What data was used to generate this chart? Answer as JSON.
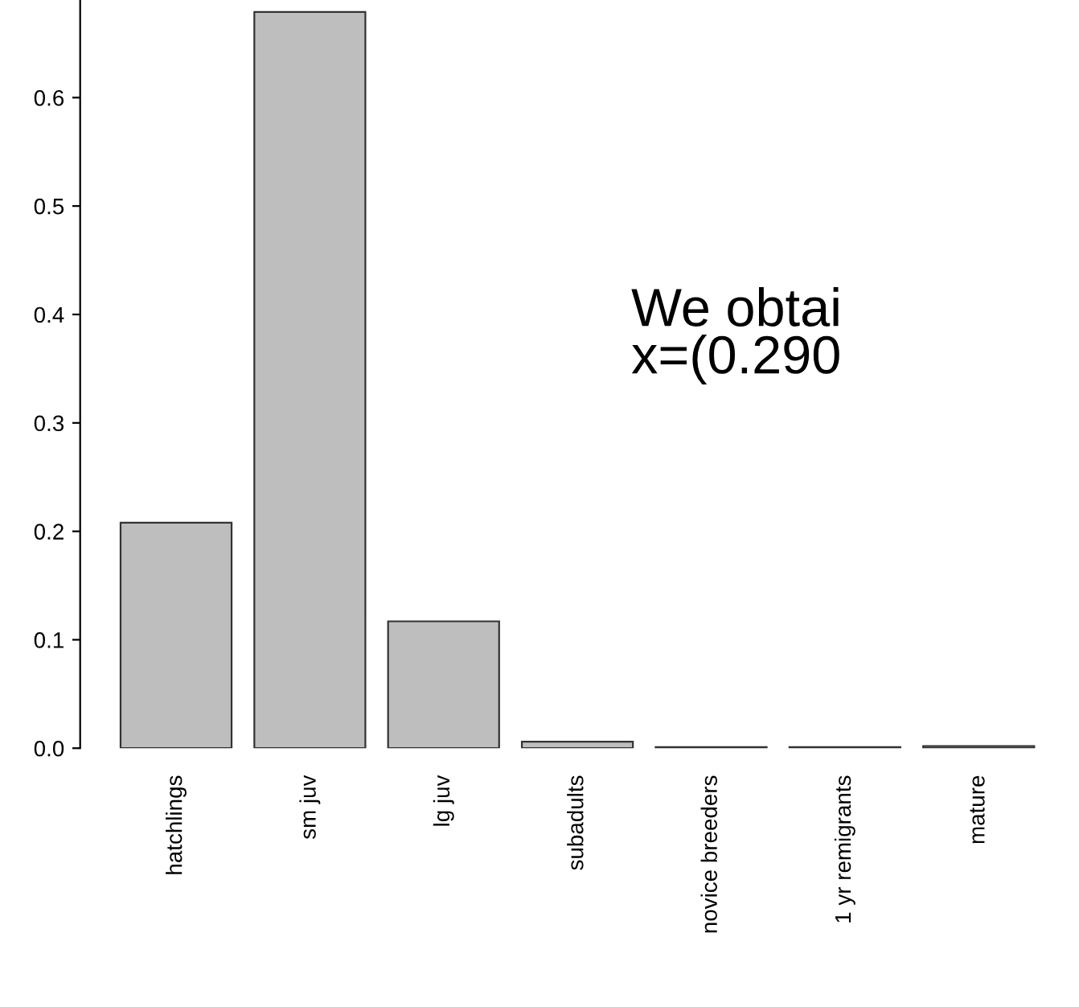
{
  "chart_data": {
    "type": "bar",
    "categories": [
      "hatchlings",
      "sm juv",
      "lg juv",
      "subadults",
      "novice breeders",
      "1 yr remigrants",
      "mature"
    ],
    "values": [
      0.208,
      0.679,
      0.117,
      0.006,
      0.001,
      0.001,
      0.002
    ],
    "color": "#bebebe",
    "ylim": [
      0,
      0.69
    ],
    "yticks": [
      {
        "value": 0,
        "label": "0.0"
      },
      0.1,
      0.2,
      0.3,
      0.4,
      0.5,
      0.6
    ],
    "grid": false,
    "annotations": [
      "We obtai",
      "x=(0.290"
    ]
  }
}
